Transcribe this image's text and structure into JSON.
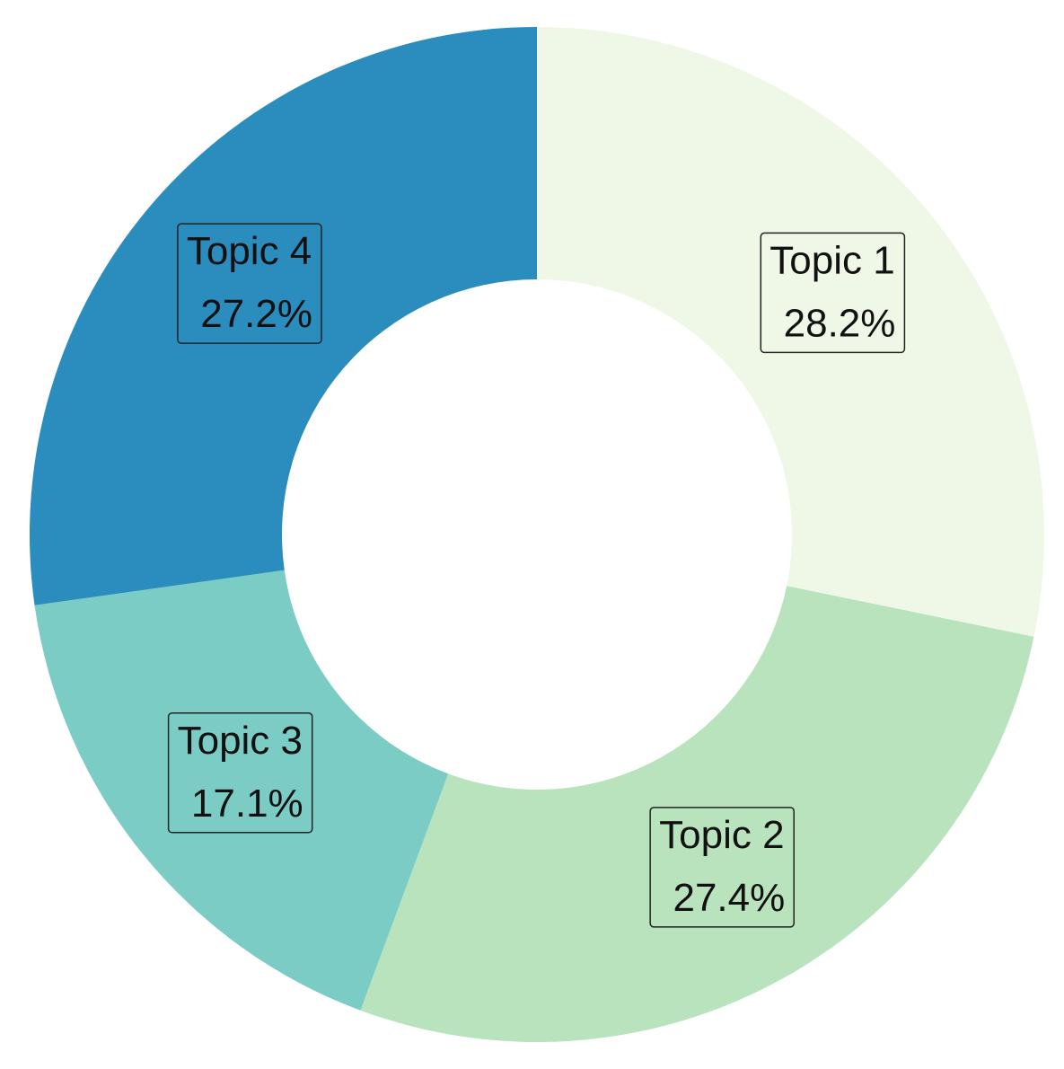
{
  "chart_data": {
    "type": "donut",
    "categories": [
      "Topic 1",
      "Topic 2",
      "Topic 3",
      "Topic 4"
    ],
    "values": [
      28.2,
      27.4,
      17.1,
      27.2
    ],
    "value_labels": [
      "28.2%",
      "27.4%",
      "17.1%",
      "27.2%"
    ],
    "colors": [
      "#eff8e6",
      "#b9e3bd",
      "#7bccc4",
      "#2b8cbe"
    ]
  }
}
